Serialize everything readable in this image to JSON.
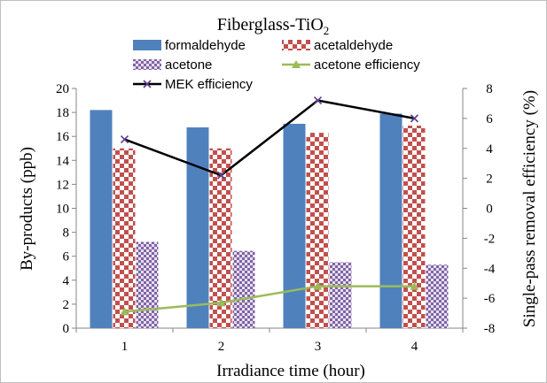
{
  "chart_data": {
    "type": "bar",
    "title": "Fiberglass-TiO",
    "title_subscript": "2",
    "xlabel": "Irradiance time (hour)",
    "ylabel": "By-products (ppb)",
    "y2label": "Single-pass  removal efficiency (%)",
    "categories": [
      "1",
      "2",
      "3",
      "4"
    ],
    "ylim": [
      0,
      20
    ],
    "y_ticks": [
      "0",
      "2",
      "4",
      "6",
      "8",
      "10",
      "12",
      "14",
      "16",
      "18",
      "20"
    ],
    "y2lim": [
      -8,
      8
    ],
    "y2_ticks": [
      "-8",
      "-6",
      "-4",
      "-2",
      "0",
      "2",
      "4",
      "6",
      "8"
    ],
    "grid": false,
    "legend_position": "top",
    "series": [
      {
        "name": "formaldehyde",
        "kind": "bar",
        "axis": "left",
        "color": "#4f81bd",
        "pattern": "solid",
        "values": [
          18.2,
          16.75,
          17.05,
          17.9
        ]
      },
      {
        "name": "acetaldehyde",
        "kind": "bar",
        "axis": "left",
        "color": "#c0504d",
        "pattern": "checker",
        "values": [
          15.0,
          15.0,
          16.3,
          16.9
        ]
      },
      {
        "name": "acetone",
        "kind": "bar",
        "axis": "left",
        "color": "#8064a2",
        "pattern": "checker-small",
        "values": [
          7.2,
          6.45,
          5.5,
          5.3
        ]
      },
      {
        "name": "acetone efficiency",
        "kind": "line",
        "axis": "right",
        "color": "#9bbb59",
        "marker": "triangle",
        "values": [
          -6.9,
          -6.3,
          -5.2,
          -5.2
        ]
      },
      {
        "name": "MEK efficiency",
        "kind": "line",
        "axis": "right",
        "color": "#000000",
        "marker": "x",
        "values": [
          4.6,
          2.2,
          7.2,
          6.0
        ]
      }
    ]
  }
}
